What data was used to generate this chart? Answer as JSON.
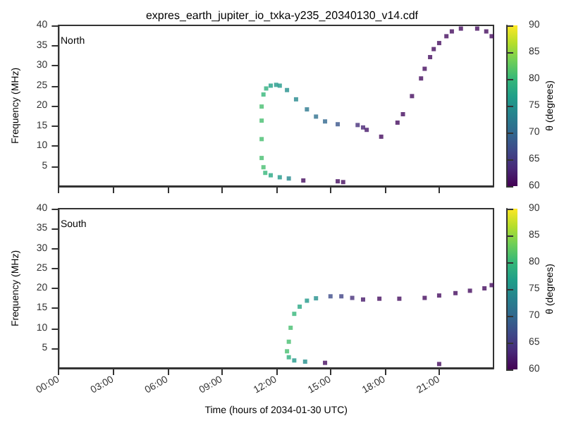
{
  "chart_data": [
    {
      "type": "scatter",
      "title": "expres_earth_jupiter_io_txka-y235_20340130_v14.cdf",
      "ylabel": "Frequency (MHz)",
      "clabel": "θ (degrees)",
      "annotations": [
        "North"
      ],
      "marker": "square",
      "tick_labels": "y",
      "x": [
        15.7,
        15.4,
        13.5,
        12.7,
        12.2,
        11.7,
        11.4,
        11.3,
        11.2,
        11.2,
        11.2,
        11.2,
        11.3,
        11.45,
        11.7,
        12.0,
        12.2,
        12.6,
        13.1,
        13.7,
        14.2,
        14.7,
        15.4,
        16.5,
        16.8,
        17.0,
        17.8,
        18.7,
        19.0,
        19.5,
        20.0,
        20.2,
        20.5,
        20.7,
        21.0,
        21.4,
        21.7,
        22.2,
        23.1,
        23.6,
        23.9
      ],
      "values": [
        1.0,
        1.2,
        1.4,
        1.9,
        2.2,
        2.7,
        3.3,
        4.7,
        7,
        11.7,
        16.3,
        19.8,
        22.8,
        24.3,
        25,
        25.2,
        25,
        23.9,
        21.6,
        19.1,
        17.3,
        16.1,
        15.4,
        15.2,
        14.6,
        14.0,
        12.3,
        15.8,
        17.9,
        22.4,
        26.8,
        29.2,
        32.1,
        34.1,
        35.6,
        37.3,
        38.5,
        39.2,
        39.2,
        38.5,
        37.3
      ],
      "cvalues": [
        61,
        61,
        61,
        74,
        76,
        78,
        80,
        81,
        81,
        81,
        81,
        81,
        80,
        79,
        77,
        76,
        76,
        75,
        74,
        72,
        71,
        70,
        68,
        64,
        63,
        62,
        61,
        61,
        61,
        61,
        61,
        61,
        61,
        61,
        61,
        61,
        61,
        61,
        61,
        61,
        61
      ],
      "xlim": [
        0,
        24
      ],
      "xticks": [
        {
          "value": 0,
          "label": null
        },
        {
          "value": 3,
          "label": null
        },
        {
          "value": 6,
          "label": null
        },
        {
          "value": 9,
          "label": null
        },
        {
          "value": 12,
          "label": null
        },
        {
          "value": 15,
          "label": null
        },
        {
          "value": 18,
          "label": null
        },
        {
          "value": 21,
          "label": null
        }
      ],
      "ylim": [
        0,
        40
      ],
      "yticks": [
        5,
        10,
        15,
        20,
        25,
        30,
        35,
        40
      ],
      "clim": [
        60,
        90
      ],
      "cticks": [
        60,
        65,
        70,
        75,
        80,
        85,
        90
      ]
    },
    {
      "type": "scatter",
      "xlabel": "Time (hours of 2034-01-30 UTC)",
      "ylabel": "Frequency (MHz)",
      "clabel": "θ (degrees)",
      "annotations": [
        "South"
      ],
      "marker": "square",
      "x": [
        14.7,
        13.6,
        13.0,
        12.7,
        12.6,
        12.7,
        12.8,
        13.0,
        13.3,
        13.7,
        14.2,
        15.0,
        15.6,
        16.2,
        16.8,
        17.7,
        18.8,
        20.2,
        21.0,
        21.0,
        21.9,
        22.7,
        23.5,
        23.9
      ],
      "values": [
        1.3,
        1.6,
        1.9,
        2.7,
        4.2,
        6.6,
        10.1,
        13.6,
        15.4,
        16.9,
        17.5,
        18.0,
        18.0,
        17.6,
        17.2,
        17.4,
        17.4,
        17.6,
        18.2,
        1.0,
        18.8,
        19.4,
        20.0,
        20.8
      ],
      "cvalues": [
        61,
        75,
        76,
        79,
        81,
        81,
        81,
        80,
        78,
        76,
        75,
        67,
        66,
        64,
        62,
        61,
        61,
        61,
        61,
        61,
        61,
        61,
        61,
        61
      ],
      "xlim": [
        0,
        24
      ],
      "xticks": [
        {
          "value": 0,
          "label": "00:00"
        },
        {
          "value": 3,
          "label": "03:00"
        },
        {
          "value": 6,
          "label": "06:00"
        },
        {
          "value": 9,
          "label": "09:00"
        },
        {
          "value": 12,
          "label": "12:00"
        },
        {
          "value": 15,
          "label": "15:00"
        },
        {
          "value": 18,
          "label": "18:00"
        },
        {
          "value": 21,
          "label": "21:00"
        }
      ],
      "ylim": [
        0,
        40
      ],
      "yticks": [
        5,
        10,
        15,
        20,
        25,
        30,
        35,
        40
      ],
      "clim": [
        60,
        90
      ],
      "cticks": [
        60,
        65,
        70,
        75,
        80,
        85,
        90
      ]
    }
  ]
}
